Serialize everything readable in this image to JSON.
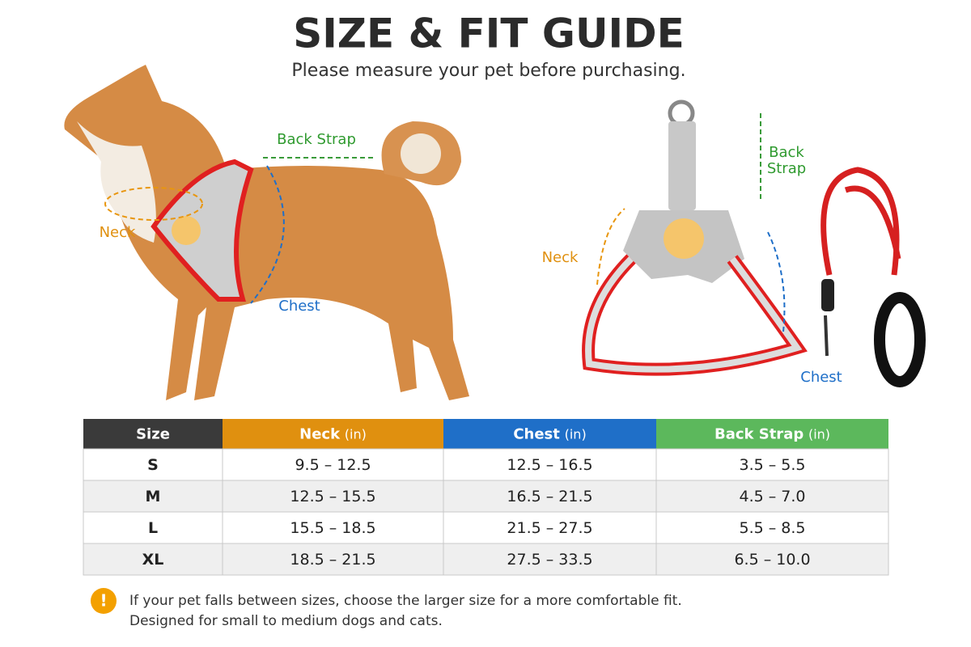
{
  "header": {
    "title": "SIZE & FIT GUIDE",
    "subtitle": "Please measure your pet before purchasing."
  },
  "dog_labels": {
    "back_strap": "Back Strap",
    "neck": "Neck",
    "chest": "Chest"
  },
  "harness_labels": {
    "back_strap": [
      "Back",
      "Strap"
    ],
    "neck": "Neck",
    "chest": "Chest"
  },
  "table": {
    "headers": [
      {
        "name": "Size"
      },
      {
        "name": "Neck",
        "unit": "(in)"
      },
      {
        "name": "Chest",
        "unit": "(in)"
      },
      {
        "name": "Back Strap",
        "unit": "(in)"
      }
    ],
    "rows": [
      [
        "S",
        "9.5 – 12.5",
        "12.5 – 16.5",
        "3.5 – 5.5"
      ],
      [
        "M",
        "12.5 – 15.5",
        "16.5 – 21.5",
        "4.5 – 7.0"
      ],
      [
        "L",
        "15.5 – 18.5",
        "21.5 – 27.5",
        "5.5 – 8.5"
      ],
      [
        "XL",
        "18.5 – 21.5",
        "27.5 – 33.5",
        "6.5 – 10.0"
      ]
    ]
  },
  "note": [
    "If your pet falls between sizes, choose the larger size for a more comfortable fit.",
    "Designed for small to medium dogs and cats."
  ]
}
